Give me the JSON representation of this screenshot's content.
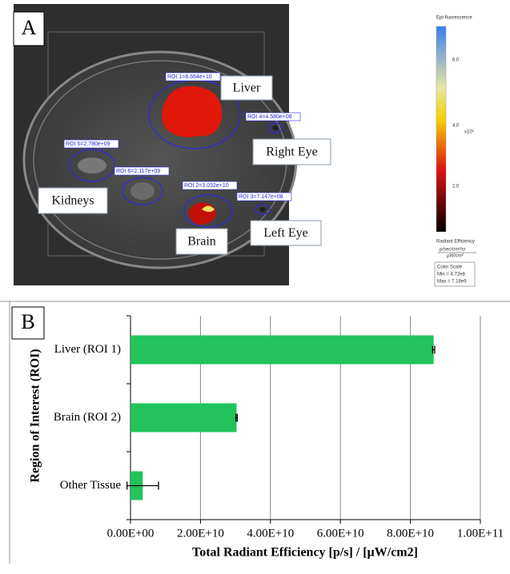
{
  "panel_a": {
    "label": "A",
    "organ_labels": [
      "Liver",
      "Right Eye",
      "Kidneys",
      "Brain",
      "Left Eye"
    ],
    "roi_labels": [
      "ROI 1=8.664e+10",
      "ROI 4=4.580e+08",
      "ROI 5=2.780e+09",
      "ROI 6=2.117e+09",
      "ROI 2=3.032e+10",
      "ROI 3=7.147e+08"
    ],
    "colorbar": {
      "title": "Epi-fluorescence",
      "ticks": [
        "6.0",
        "4.0",
        "2.0"
      ],
      "multiplier": "x10⁹",
      "unit_title": "Radiant Efficiency",
      "unit_num": "p/sec/cm²/sr",
      "unit_den": "µW/cm²",
      "scale_title": "Color Scale",
      "min": "Min = 4.72e8",
      "max": "Max = 7.18e9"
    }
  },
  "chart_data": {
    "type": "barh",
    "panel_label": "B",
    "categories": [
      "Liver (ROI 1)",
      "Brain (ROI 2)",
      "Other Tissue"
    ],
    "values": [
      86640000000,
      30320000000,
      3500000000
    ],
    "errors": [
      300000000,
      200000000,
      4500000000
    ],
    "color": "#21c35a",
    "xlim": [
      0,
      100000000000
    ],
    "xticks": [
      {
        "value": 0,
        "label": "0.00E+00"
      },
      {
        "value": 20000000000,
        "label": "2.00E+10"
      },
      {
        "value": 40000000000,
        "label": "4.00E+10"
      },
      {
        "value": 60000000000,
        "label": "6.00E+10"
      },
      {
        "value": 80000000000,
        "label": "8.00E+10"
      },
      {
        "value": 100000000000,
        "label": "1.00E+11"
      }
    ],
    "xlabel": "Total Radiant Efficiency [p/s] / [µW/cm2]",
    "ylabel": "Region of Interest (ROI)",
    "grid": true
  }
}
